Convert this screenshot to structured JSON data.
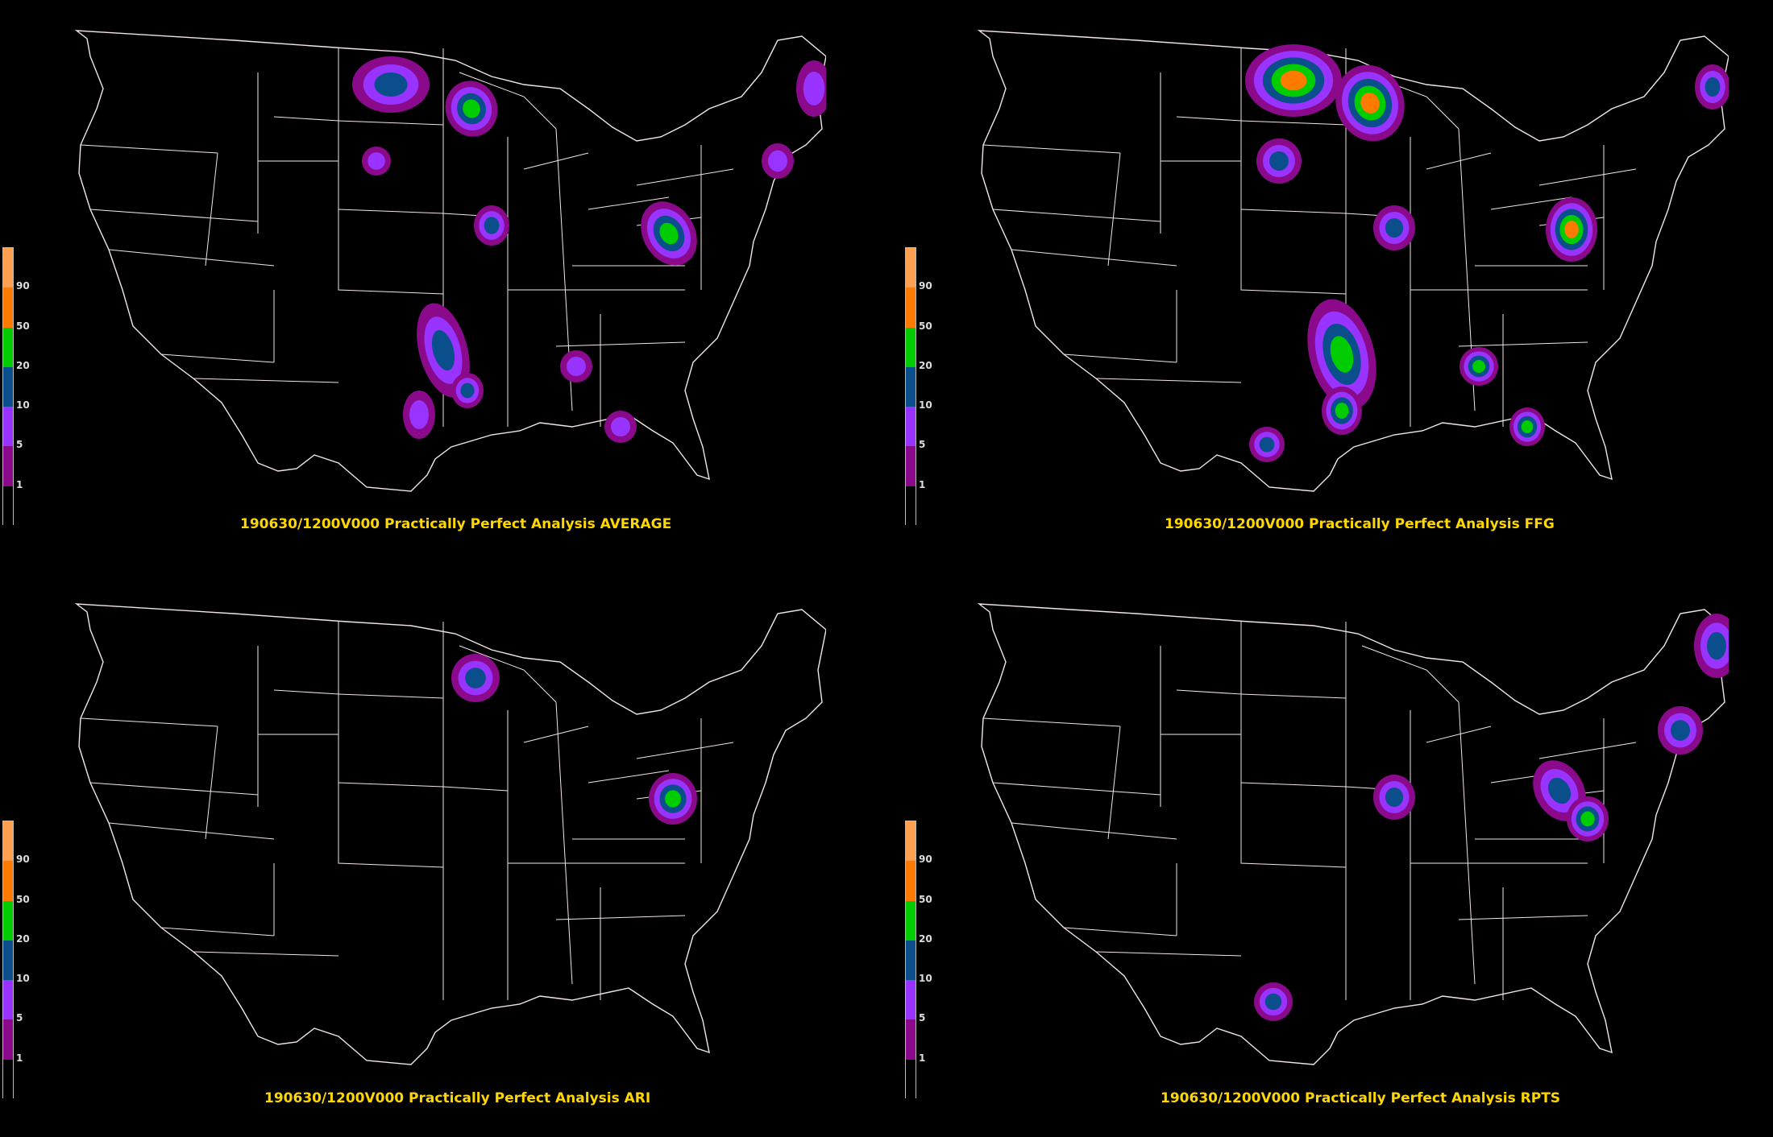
{
  "legend": {
    "labels": [
      "90",
      "50",
      "20",
      "10",
      "5",
      "1"
    ],
    "colors": {
      "c90": "#ffa050",
      "c50": "#ff7a00",
      "c20": "#00cc00",
      "c10": "#0a4f8c",
      "c5": "#9933ff",
      "c1": "#8b0a8b",
      "c0": "#000000"
    }
  },
  "panels": [
    {
      "id": "average",
      "caption": "190630/1200V000 Practically Perfect Analysis AVERAGE"
    },
    {
      "id": "ffg",
      "caption": "190630/1200V000 Practically Perfect Analysis FFG"
    },
    {
      "id": "ari",
      "caption": "190630/1200V000 Practically Perfect Analysis ARI"
    },
    {
      "id": "rpts",
      "caption": "190630/1200V000 Practically Perfect Analysis RPTS"
    }
  ]
}
